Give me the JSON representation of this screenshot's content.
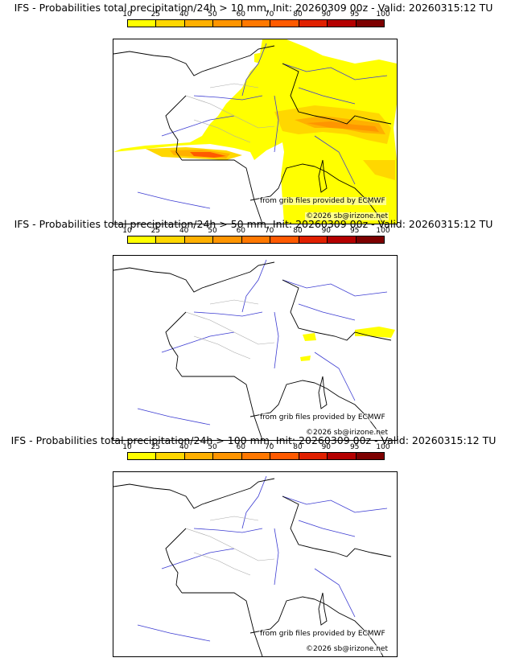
{
  "colorbar": {
    "ticks": [
      "10",
      "25",
      "40",
      "50",
      "60",
      "70",
      "80",
      "90",
      "95",
      "100"
    ],
    "colors": [
      "#ffff00",
      "#ffd700",
      "#ffb000",
      "#ff9500",
      "#ff7800",
      "#ff5a00",
      "#e02000",
      "#b40000",
      "#7d0000"
    ]
  },
  "map": {
    "source_credit": "from grib files provided by ECMWF",
    "copyright": "©2026 sb@irizone.net",
    "coast_color": "#000000",
    "river_color": "#3c3cd2",
    "border_color": "#aaaaaa"
  },
  "panels": [
    {
      "title": "IFS - Probabilities total precipitation/24h > 10 mm, Init: 20260309 00z - Valid: 20260315:12 TU",
      "threshold_mm": 10
    },
    {
      "title": "IFS - Probabilities total precipitation/24h > 50 mm, Init: 20260309 00z - Valid: 20260315:12 TU",
      "threshold_mm": 50
    },
    {
      "title": "IFS - Probabilities total precipitation/24h > 100 mm, Init: 20260309 00z - Valid: 20260315:12 TU",
      "threshold_mm": 100
    }
  ]
}
